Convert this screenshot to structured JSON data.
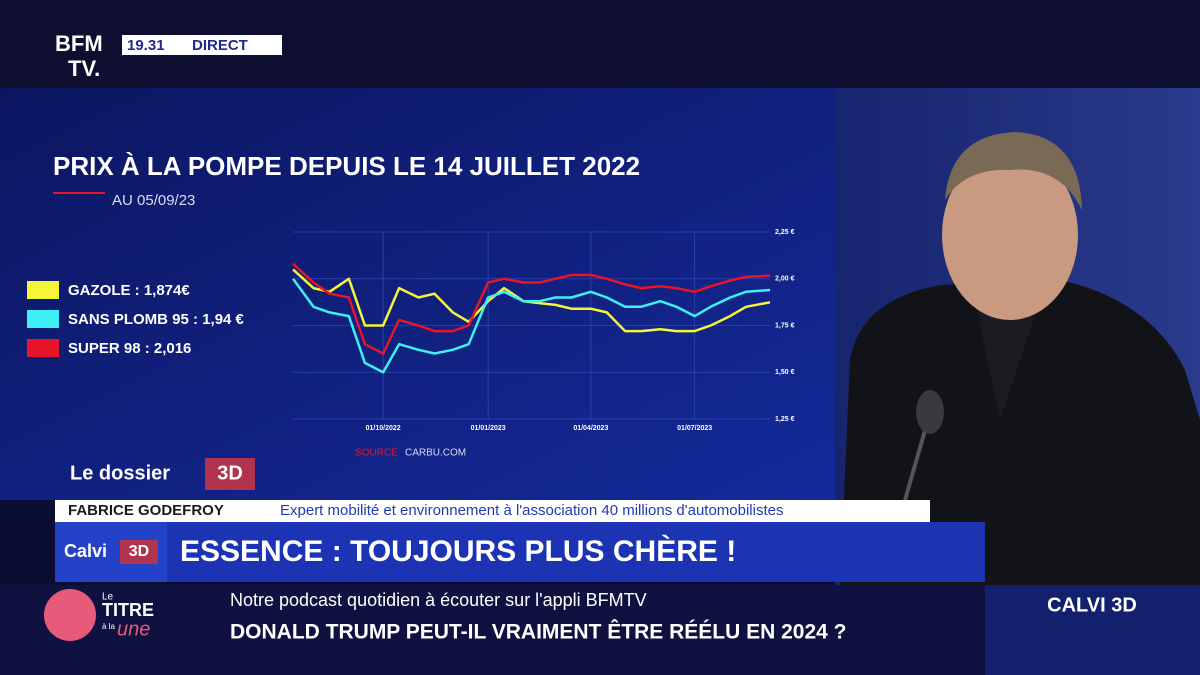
{
  "channel": {
    "logo_top": "BFM",
    "logo_bottom": "TV.",
    "time": "19.31",
    "live": "DIRECT"
  },
  "chart_data": {
    "type": "line",
    "title": "PRIX À LA POMPE DEPUIS LE 14 JUILLET 2022",
    "subtitle": "AU 05/09/23",
    "source_label": "SOURCE",
    "source": "CARBU.COM",
    "x": [
      "2022-07-14",
      "2022-08-01",
      "2022-08-15",
      "2022-09-01",
      "2022-09-15",
      "2022-10-01",
      "2022-10-15",
      "2022-11-01",
      "2022-11-15",
      "2022-12-01",
      "2022-12-15",
      "2023-01-01",
      "2023-01-15",
      "2023-02-01",
      "2023-02-15",
      "2023-03-01",
      "2023-03-15",
      "2023-04-01",
      "2023-04-15",
      "2023-05-01",
      "2023-05-15",
      "2023-06-01",
      "2023-06-15",
      "2023-07-01",
      "2023-07-15",
      "2023-08-01",
      "2023-08-15",
      "2023-09-05"
    ],
    "xlim": [
      "2022-07-14",
      "2023-09-05"
    ],
    "xticks": [
      {
        "value": "2022-10-01",
        "label": "01/10/2022"
      },
      {
        "value": "2023-01-01",
        "label": "01/01/2023"
      },
      {
        "value": "2023-04-01",
        "label": "01/04/2023"
      },
      {
        "value": "2023-07-01",
        "label": "01/07/2023"
      }
    ],
    "ylim": [
      1.25,
      2.25
    ],
    "yticks": [
      {
        "value": 1.25,
        "label": "1,25 €"
      },
      {
        "value": 1.5,
        "label": "1,50 €"
      },
      {
        "value": 1.75,
        "label": "1,75 €"
      },
      {
        "value": 2.0,
        "label": "2,00 €"
      },
      {
        "value": 2.25,
        "label": "2,25 €"
      }
    ],
    "grid": true,
    "series": [
      {
        "name": "GAZOLE : 1,874€",
        "color": "#f5f53a",
        "values": [
          2.05,
          1.95,
          1.93,
          2.0,
          1.75,
          1.75,
          1.95,
          1.9,
          1.92,
          1.82,
          1.77,
          1.88,
          1.95,
          1.88,
          1.87,
          1.86,
          1.84,
          1.84,
          1.82,
          1.72,
          1.72,
          1.73,
          1.72,
          1.72,
          1.75,
          1.8,
          1.85,
          1.874
        ]
      },
      {
        "name": "SANS PLOMB 95 : 1,94 €",
        "color": "#3ef0f5",
        "values": [
          2.0,
          1.85,
          1.82,
          1.8,
          1.55,
          1.5,
          1.65,
          1.62,
          1.6,
          1.62,
          1.65,
          1.9,
          1.93,
          1.88,
          1.88,
          1.9,
          1.9,
          1.93,
          1.9,
          1.85,
          1.85,
          1.88,
          1.85,
          1.8,
          1.85,
          1.9,
          1.93,
          1.94
        ]
      },
      {
        "name": "SUPER 98 : 2,016",
        "color": "#e8142a",
        "values": [
          2.08,
          1.98,
          1.92,
          1.9,
          1.65,
          1.6,
          1.78,
          1.75,
          1.72,
          1.72,
          1.75,
          1.98,
          2.0,
          1.98,
          1.98,
          2.0,
          2.02,
          2.02,
          2.0,
          1.97,
          1.95,
          1.96,
          1.95,
          1.93,
          1.96,
          1.99,
          2.01,
          2.016
        ]
      }
    ]
  },
  "dossier": {
    "label": "Le dossier",
    "badge": "3D"
  },
  "guest": {
    "name": "FABRICE GODEFROY",
    "role": "Expert mobilité et environnement à l'association 40 millions d'automobilistes"
  },
  "show": {
    "name": "Calvi",
    "badge": "3D"
  },
  "headline": "ESSENCE : TOUJOURS PLUS CHÈRE !",
  "ticker": {
    "brand_top": "Le",
    "brand_title": "TITRE",
    "brand_small": "à la",
    "brand_bottom": "une",
    "line1": "Notre podcast quotidien à écouter sur l'appli BFMTV",
    "line2": "DONALD TRUMP PEUT-IL VRAIMENT ÊTRE RÉÉLU EN 2024 ?",
    "corner": "CALVI 3D"
  }
}
